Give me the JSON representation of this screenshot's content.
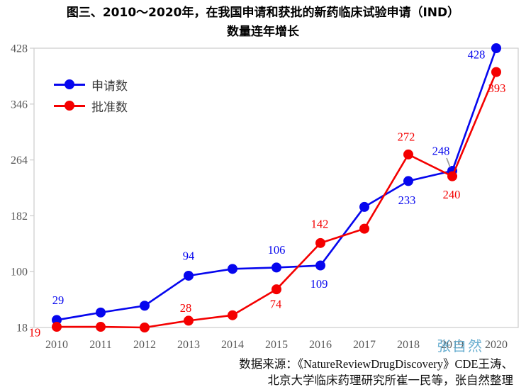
{
  "title": {
    "line1": "图三、2010～2020年，在我国申请和获批的新药临床试验申请（IND）",
    "line2": "数量连年增长"
  },
  "legend": {
    "items": [
      {
        "label": "申请数",
        "color": "#0606ee"
      },
      {
        "label": "批准数",
        "color": "#f40000"
      }
    ]
  },
  "watermark": {
    "text": "张自然",
    "color": "#5ea9cd"
  },
  "source": {
    "line1": "数据来源：《NatureReviewDrugDiscovery》CDE王涛、",
    "line2": "北京大学临床药理研究所崔一民等，张自然整理"
  },
  "chart_data": {
    "type": "line",
    "title": "图三、2010～2020年，在我国申请和获批的新药临床试验申请（IND）数量连年增长",
    "categories": [
      "2010",
      "2011",
      "2012",
      "2013",
      "2014",
      "2015",
      "2016",
      "2017",
      "2018",
      "2019",
      "2020"
    ],
    "xlabel": "",
    "ylabel": "",
    "ylim": [
      18,
      428
    ],
    "yticks": [
      18,
      100,
      182,
      264,
      346,
      428
    ],
    "grid": false,
    "legend_position": "top-left inside plot",
    "axis_color": "#cfcfcf",
    "tick_label_color": "#595959",
    "series": [
      {
        "id": "applications",
        "name": "申请数",
        "color": "#0606ee",
        "values": [
          29,
          40,
          50,
          94,
          104,
          106,
          109,
          195,
          233,
          248,
          428
        ],
        "point_labels": [
          {
            "index": 0,
            "value": 29,
            "dx": 2,
            "dy": -28
          },
          {
            "index": 3,
            "value": 94,
            "dx": 0,
            "dy": -28
          },
          {
            "index": 5,
            "value": 106,
            "dx": 0,
            "dy": -25
          },
          {
            "index": 6,
            "value": 109,
            "dx": -2,
            "dy": 26
          },
          {
            "index": 8,
            "value": 233,
            "dx": -2,
            "dy": 27
          },
          {
            "index": 9,
            "value": 248,
            "dx": -16,
            "dy": -28,
            "leader": true
          },
          {
            "index": 10,
            "value": 428,
            "dx": -28,
            "dy": 9
          }
        ]
      },
      {
        "id": "approvals",
        "name": "批准数",
        "color": "#f40000",
        "values": [
          19,
          19,
          18,
          28,
          36,
          74,
          142,
          163,
          272,
          240,
          393
        ],
        "point_labels": [
          {
            "index": 0,
            "value": 19,
            "dx": -31,
            "dy": 8
          },
          {
            "index": 3,
            "value": 28,
            "dx": -4,
            "dy": -18
          },
          {
            "index": 5,
            "value": 74,
            "dx": -1,
            "dy": 21
          },
          {
            "index": 6,
            "value": 142,
            "dx": -1,
            "dy": -27
          },
          {
            "index": 8,
            "value": 272,
            "dx": -3,
            "dy": -25
          },
          {
            "index": 9,
            "value": 240,
            "dx": -1,
            "dy": 26
          },
          {
            "index": 10,
            "value": 393,
            "dx": 1,
            "dy": 23
          }
        ]
      }
    ]
  }
}
